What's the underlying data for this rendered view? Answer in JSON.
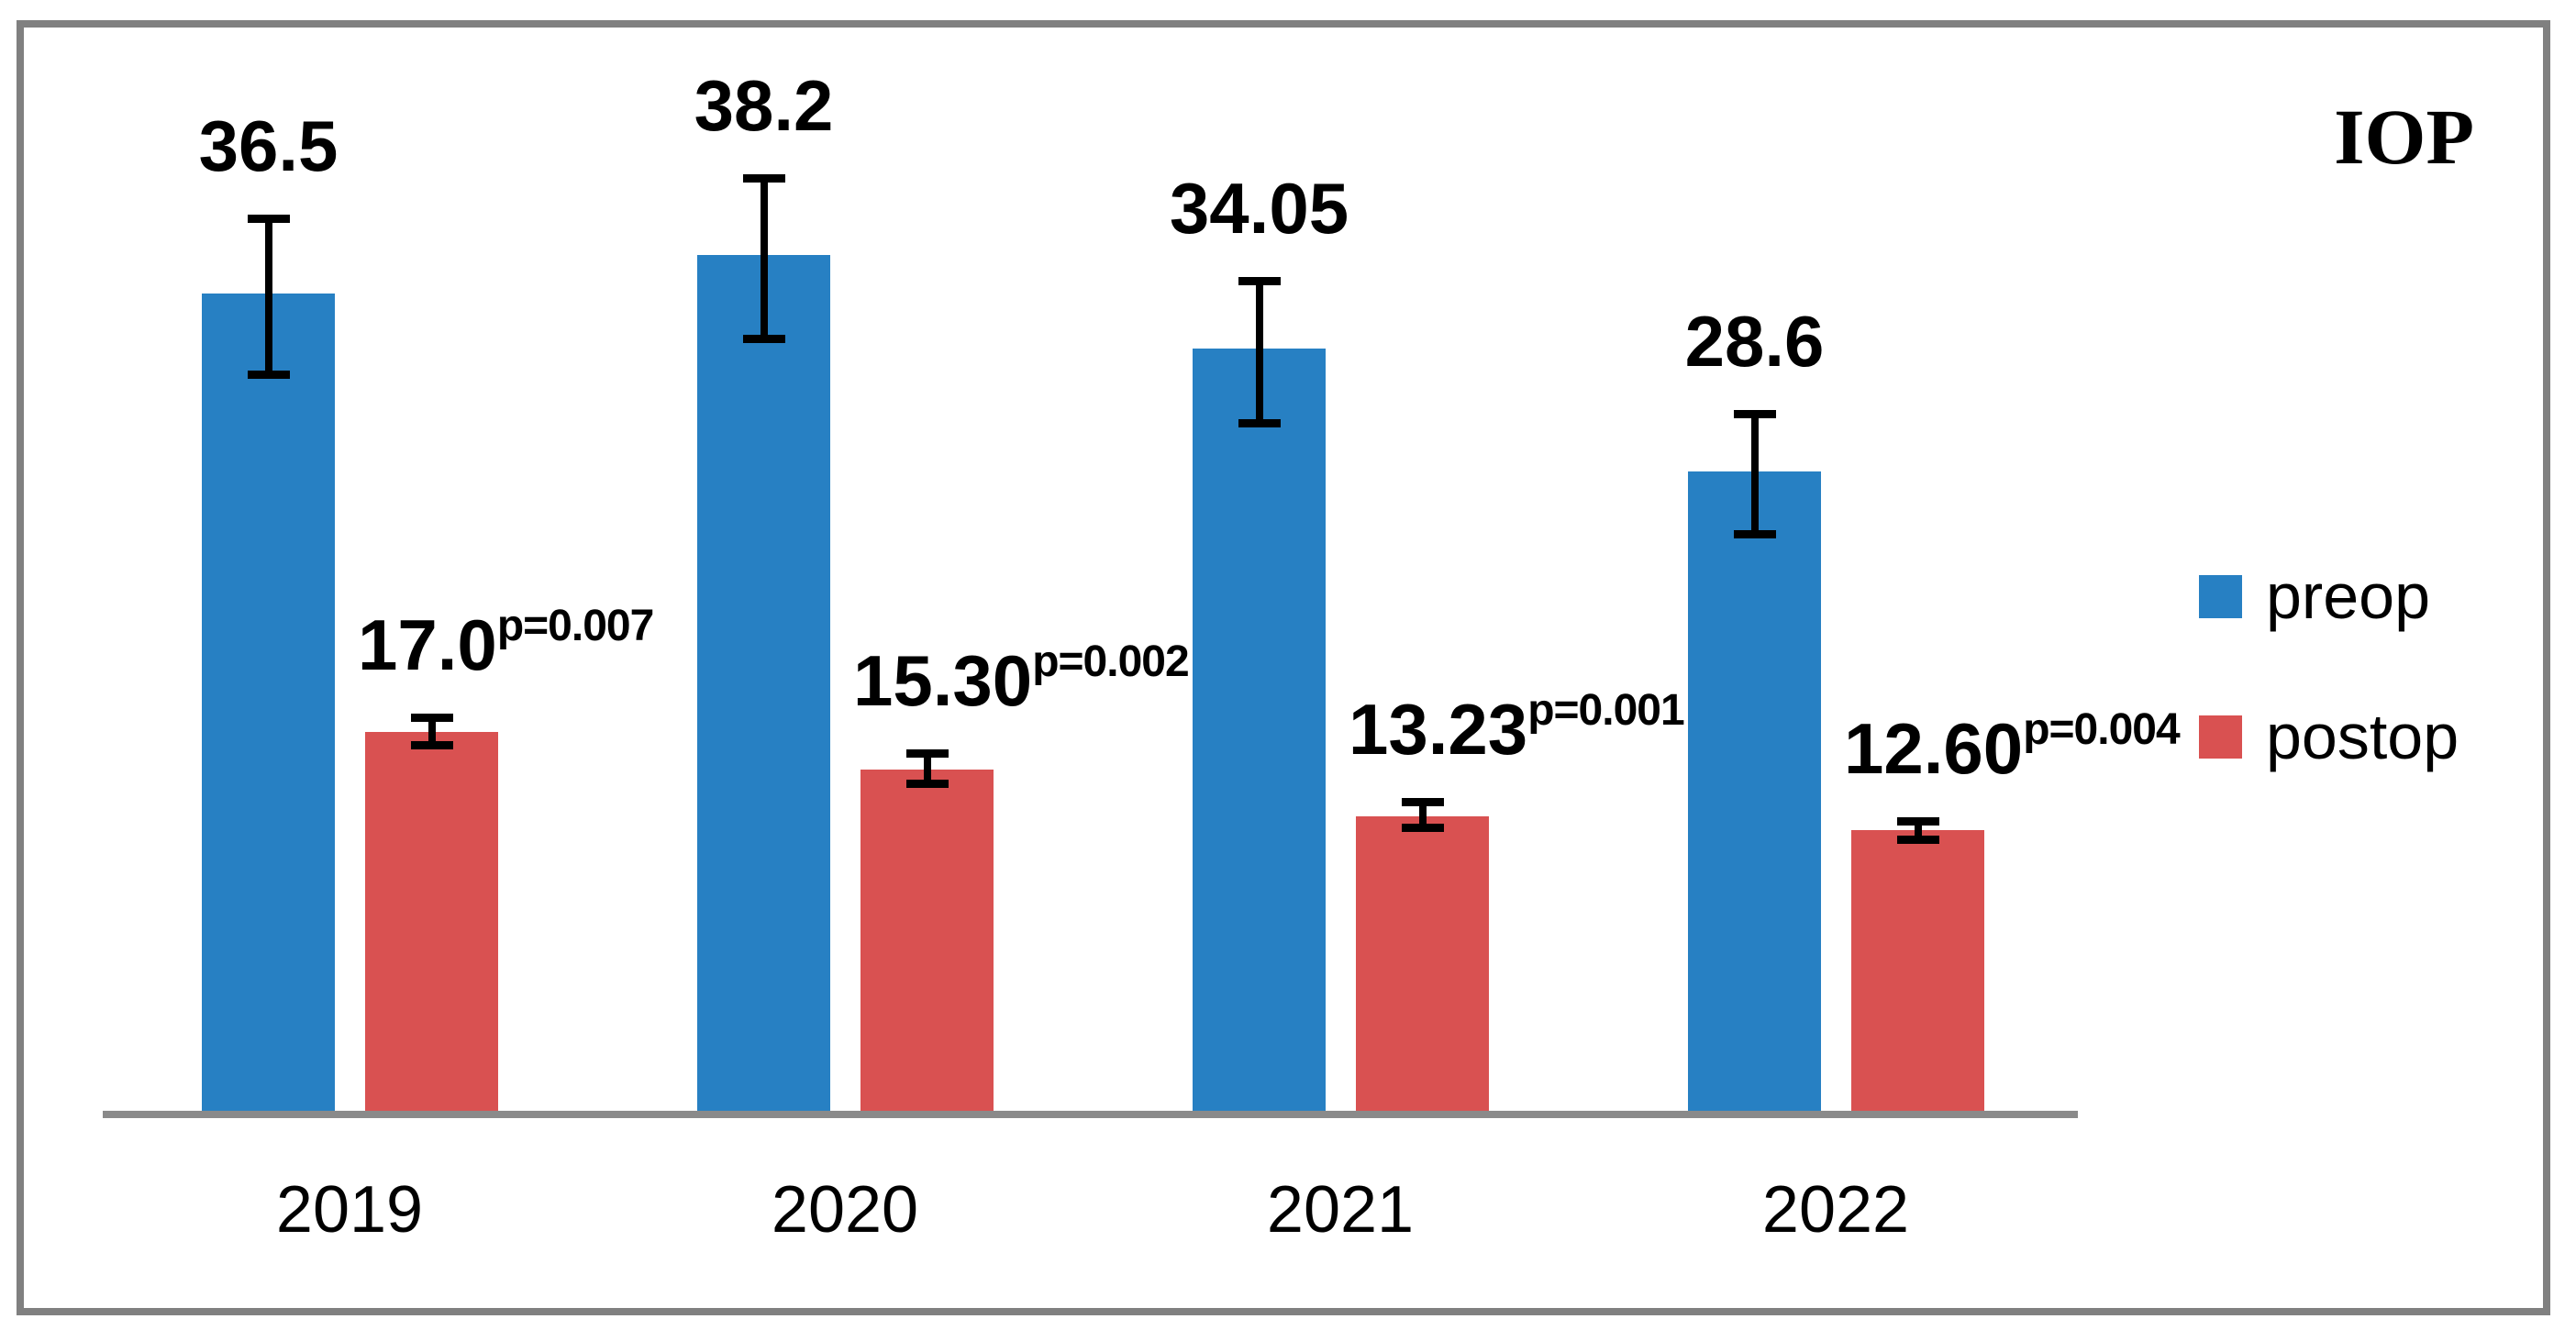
{
  "title": "IOP",
  "chart_data": {
    "type": "bar",
    "title": "IOP",
    "categories": [
      "2019",
      "2020",
      "2021",
      "2022"
    ],
    "series": [
      {
        "name": "preop",
        "color": "#2780C3",
        "values": [
          36.5,
          38.2,
          34.05,
          28.6
        ],
        "labels": [
          "36.5",
          "38.2",
          "34.05",
          "28.6"
        ],
        "error_up": [
          3.5,
          3.6,
          3.2,
          2.7
        ],
        "error_down": [
          3.8,
          3.9,
          3.5,
          3.0
        ]
      },
      {
        "name": "postop",
        "color": "#D95151",
        "values": [
          17.0,
          15.3,
          13.23,
          12.6
        ],
        "labels": [
          "17.0",
          "15.30",
          "13.23",
          "12.60"
        ],
        "p_values": [
          "p=0.007",
          "p=0.002",
          "p=0.001",
          "p=0.004"
        ],
        "error_up": [
          0.8,
          0.9,
          0.8,
          0.6
        ],
        "error_down": [
          0.8,
          0.8,
          0.7,
          0.6
        ]
      }
    ],
    "ylim": [
      0,
      45
    ],
    "grid": false,
    "y_axis_visible": false,
    "legend_position": "right",
    "axis_color": "#8A8A8A",
    "frame_color": "#808080",
    "error_bar_color": "#000000"
  }
}
